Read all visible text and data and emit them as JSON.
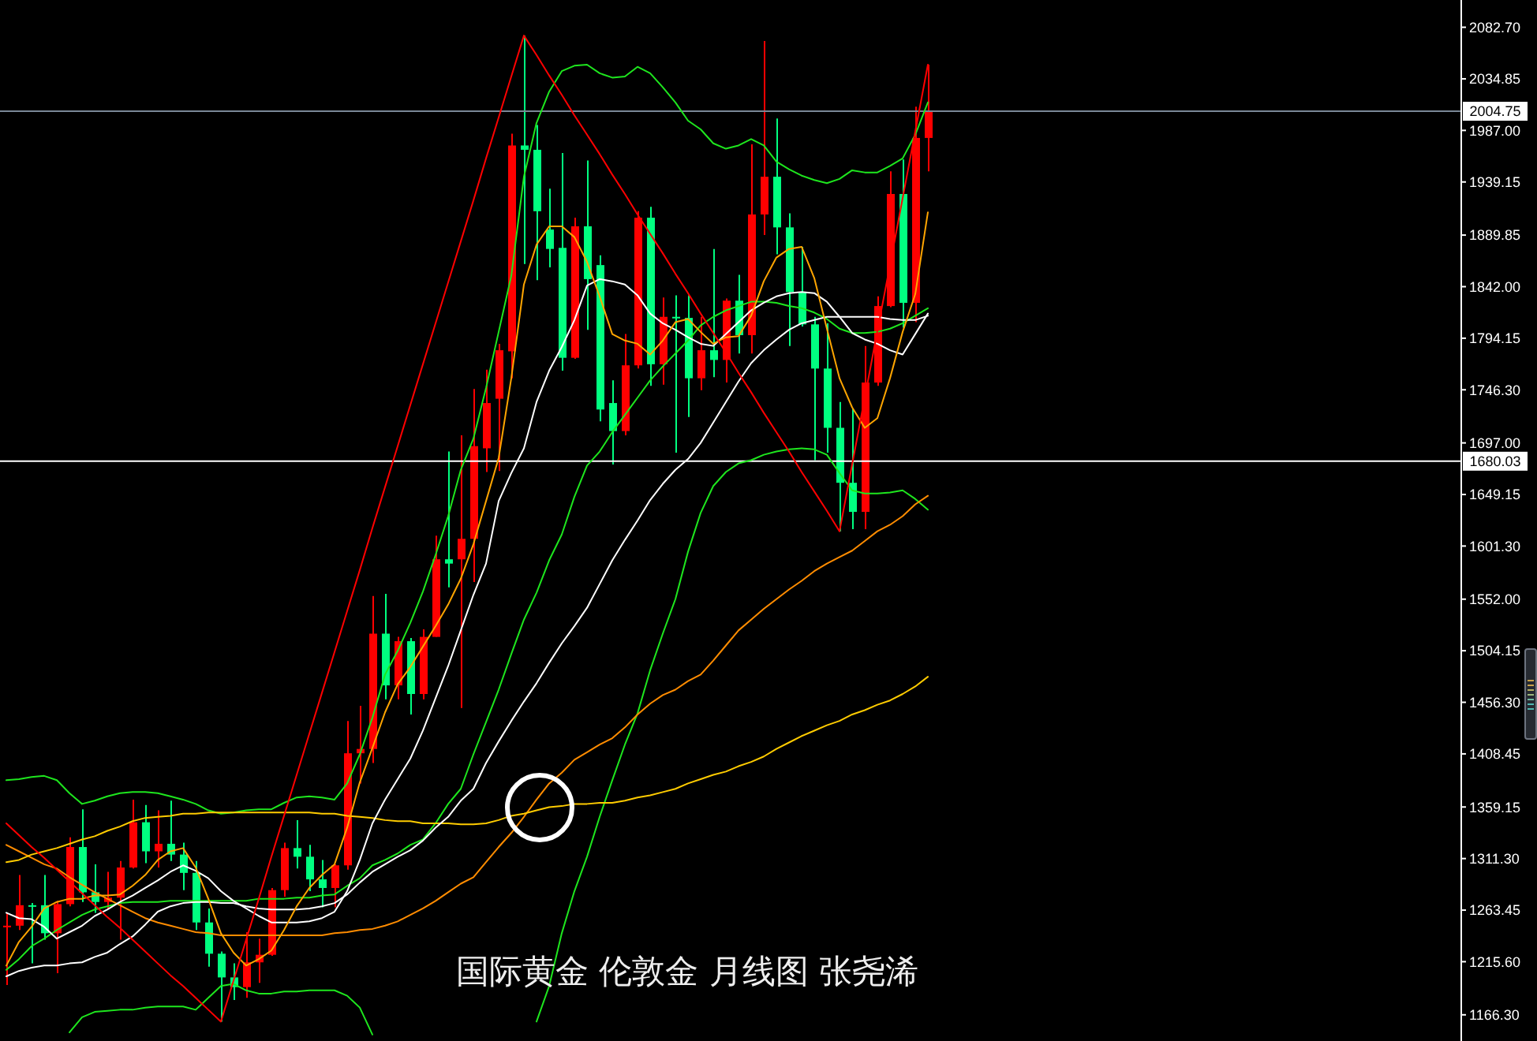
{
  "chart_data": {
    "type": "candlestick",
    "categories": [
      null,
      null,
      null,
      null,
      null,
      null,
      null,
      null,
      null,
      null,
      null,
      null,
      null,
      null,
      null,
      null,
      null,
      null,
      null,
      null,
      null,
      null,
      null,
      null,
      null,
      null,
      null,
      null,
      null,
      null,
      null,
      null,
      null,
      null,
      null,
      null,
      null,
      null,
      null,
      null,
      null,
      null,
      null,
      null,
      null,
      null,
      null,
      null,
      null,
      null,
      null,
      null,
      null,
      null,
      null,
      null,
      null,
      null,
      null,
      null,
      null,
      null,
      null,
      null,
      null,
      null,
      null,
      null,
      null,
      null,
      null,
      null,
      null,
      null
    ],
    "ohlc": [
      [
        1248,
        1261,
        1194,
        1249
      ],
      [
        1249,
        1296,
        1245,
        1268
      ],
      [
        1268,
        1270,
        1214,
        1268
      ],
      [
        1268,
        1296,
        1236,
        1242
      ],
      [
        1242,
        1272,
        1205,
        1269
      ],
      [
        1269,
        1331,
        1267,
        1322
      ],
      [
        1322,
        1357,
        1271,
        1280
      ],
      [
        1280,
        1306,
        1261,
        1271
      ],
      [
        1271,
        1299,
        1265,
        1275
      ],
      [
        1275,
        1309,
        1236,
        1303
      ],
      [
        1303,
        1366,
        1302,
        1345
      ],
      [
        1345,
        1361,
        1307,
        1318
      ],
      [
        1318,
        1356,
        1303,
        1325
      ],
      [
        1325,
        1365,
        1309,
        1315
      ],
      [
        1315,
        1326,
        1282,
        1298
      ],
      [
        1298,
        1309,
        1245,
        1252
      ],
      [
        1252,
        1265,
        1211,
        1223
      ],
      [
        1223,
        1225,
        1160,
        1201
      ],
      [
        1201,
        1214,
        1180,
        1192
      ],
      [
        1192,
        1243,
        1182,
        1215
      ],
      [
        1215,
        1237,
        1196,
        1222
      ],
      [
        1222,
        1284,
        1221,
        1282
      ],
      [
        1282,
        1326,
        1276,
        1321
      ],
      [
        1321,
        1347,
        1302,
        1313
      ],
      [
        1313,
        1324,
        1281,
        1292
      ],
      [
        1292,
        1310,
        1266,
        1284
      ],
      [
        1284,
        1306,
        1266,
        1305
      ],
      [
        1305,
        1439,
        1301,
        1409
      ],
      [
        1409,
        1453,
        1381,
        1413
      ],
      [
        1413,
        1555,
        1400,
        1520
      ],
      [
        1520,
        1557,
        1459,
        1472
      ],
      [
        1472,
        1517,
        1459,
        1513
      ],
      [
        1513,
        1516,
        1445,
        1464
      ],
      [
        1464,
        1524,
        1459,
        1517
      ],
      [
        1517,
        1611,
        1517,
        1589
      ],
      [
        1589,
        1689,
        1563,
        1585
      ],
      [
        1589,
        1704,
        1451,
        1608
      ],
      [
        1608,
        1747,
        1568,
        1694
      ],
      [
        1692,
        1765,
        1670,
        1734
      ],
      [
        1738,
        1789,
        1671,
        1783
      ],
      [
        1782,
        1984,
        1757,
        1973
      ],
      [
        1973,
        2075,
        1863,
        1969
      ],
      [
        1969,
        1992,
        1848,
        1912
      ],
      [
        1895,
        1933,
        1860,
        1877
      ],
      [
        1878,
        1966,
        1764,
        1776
      ],
      [
        1776,
        1906,
        1775,
        1898
      ],
      [
        1898,
        1959,
        1802,
        1849
      ],
      [
        1862,
        1871,
        1717,
        1728
      ],
      [
        1734,
        1755,
        1677,
        1708
      ],
      [
        1708,
        1798,
        1704,
        1769
      ],
      [
        1769,
        1912,
        1766,
        1906
      ],
      [
        1906,
        1916,
        1750,
        1770
      ],
      [
        1770,
        1832,
        1751,
        1814
      ],
      [
        1814,
        1834,
        1688,
        1813
      ],
      [
        1813,
        1834,
        1721,
        1757
      ],
      [
        1757,
        1814,
        1746,
        1783
      ],
      [
        1783,
        1877,
        1758,
        1774
      ],
      [
        1774,
        1831,
        1753,
        1829
      ],
      [
        1829,
        1853,
        1780,
        1797
      ],
      [
        1797,
        1974,
        1780,
        1909
      ],
      [
        1909,
        2070,
        1890,
        1944
      ],
      [
        1944,
        1998,
        1872,
        1897
      ],
      [
        1897,
        1910,
        1787,
        1837
      ],
      [
        1837,
        1879,
        1805,
        1807
      ],
      [
        1807,
        1814,
        1681,
        1766
      ],
      [
        1766,
        1808,
        1688,
        1711
      ],
      [
        1711,
        1735,
        1615,
        1660
      ],
      [
        1660,
        1729,
        1617,
        1633
      ],
      [
        1633,
        1787,
        1617,
        1753
      ],
      [
        1753,
        1833,
        1750,
        1824
      ],
      [
        1824,
        1949,
        1823,
        1928
      ],
      [
        1928,
        1960,
        1804,
        1827
      ],
      [
        1827,
        2009,
        1809,
        1980
      ],
      [
        1980,
        2048,
        1949,
        2005
      ]
    ],
    "colors": [
      "#ff0000",
      "#ff0000",
      "#00ff80",
      "#00ff80",
      "#ff0000",
      "#ff0000",
      "#00ff80",
      "#00ff80",
      "#ff0000",
      "#ff0000",
      "#ff0000",
      "#00ff80",
      "#ff0000",
      "#00ff80",
      "#00ff80",
      "#00ff80",
      "#00ff80",
      "#00ff80",
      "#00ff80",
      "#ff0000",
      "#ff0000",
      "#ff0000",
      "#ff0000",
      "#00ff80",
      "#00ff80",
      "#00ff80",
      "#ff0000",
      "#ff0000",
      "#ff0000",
      "#ff0000",
      "#00ff80",
      "#ff0000",
      "#00ff80",
      "#ff0000",
      "#ff0000",
      "#00ff80",
      "#ff0000",
      "#ff0000",
      "#ff0000",
      "#ff0000",
      "#ff0000",
      "#00ff80",
      "#00ff80",
      "#00ff80",
      "#00ff80",
      "#ff0000",
      "#00ff80",
      "#00ff80",
      "#00ff80",
      "#ff0000",
      "#ff0000",
      "#00ff80",
      "#ff0000",
      "#00ff80",
      "#00ff80",
      "#ff0000",
      "#00ff80",
      "#ff0000",
      "#00ff80",
      "#ff0000",
      "#ff0000",
      "#00ff80",
      "#00ff80",
      "#00ff80",
      "#00ff80",
      "#00ff80",
      "#00ff80",
      "#00ff80",
      "#ff0000",
      "#ff0000",
      "#ff0000",
      "#00ff80",
      "#ff0000",
      "#ff0000"
    ],
    "series": [
      {
        "type": "line",
        "color": "#1ee61e",
        "values": [
          1384,
          1385,
          1387,
          1388,
          1384,
          1372,
          1362,
          1365,
          1369,
          1372,
          1373,
          1373,
          1372,
          1369,
          1366,
          1362,
          1356,
          1353,
          1354,
          1356,
          1357,
          1357,
          1363,
          1368,
          1369,
          1368,
          1366,
          1381,
          1408,
          1442,
          1482,
          1504,
          1530,
          1559,
          1593,
          1629,
          1672,
          1701,
          1748,
          1800,
          1852,
          1944,
          1994,
          2023,
          2042,
          2047,
          2048,
          2040,
          2036,
          2037,
          2046,
          2040,
          2027,
          2013,
          1996,
          1988,
          1975,
          1970,
          1973,
          1979,
          1973,
          1958,
          1951,
          1945,
          1941,
          1938,
          1942,
          1950,
          1948,
          1948,
          1954,
          1961,
          1983,
          2013
        ]
      },
      {
        "type": "line",
        "color": "#1ee61e",
        "values": [
          1208,
          1218,
          1230,
          1237,
          1245,
          1252,
          1259,
          1264,
          1267,
          1270,
          1271,
          1271,
          1271,
          1272,
          1272,
          1272,
          1272,
          1272,
          1272,
          1272,
          1274,
          1274,
          1274,
          1275,
          1275,
          1277,
          1278,
          1286,
          1293,
          1305,
          1310,
          1316,
          1324,
          1329,
          1344,
          1362,
          1376,
          1408,
          1438,
          1468,
          1501,
          1533,
          1558,
          1588,
          1612,
          1647,
          1676,
          1689,
          1707,
          1723,
          1739,
          1755,
          1768,
          1780,
          1792,
          1806,
          1814,
          1820,
          1824,
          1828,
          1828,
          1827,
          1824,
          1822,
          1818,
          1812,
          1803,
          1799,
          1799,
          1800,
          1803,
          1808,
          1815,
          1822
        ]
      },
      {
        "type": "line",
        "color": "#1ee61e",
        "values": [
          null,
          null,
          null,
          null,
          null,
          1150,
          1164,
          1169,
          1170,
          1171,
          1171,
          1173,
          1174,
          1174,
          1174,
          1171,
          1182,
          1193,
          1195,
          1189,
          1186,
          1186,
          1188,
          1188,
          1189,
          1189,
          1189,
          1184,
          1173,
          1148,
          null,
          null,
          null,
          null,
          null,
          null,
          null,
          null,
          null,
          null,
          null,
          null,
          1160,
          1193,
          1242,
          1281,
          1313,
          1350,
          1384,
          1417,
          1446,
          1486,
          1520,
          1552,
          1596,
          1632,
          1657,
          1670,
          1678,
          1681,
          1686,
          1689,
          1691,
          1692,
          1691,
          1686,
          1669,
          1653,
          1650,
          1650,
          1651,
          1653,
          1645,
          1635
        ]
      },
      {
        "type": "line",
        "color": "#ff8c00",
        "values": [
          1324,
          1318,
          1312,
          1306,
          1302,
          1294,
          1287,
          1280,
          1274,
          1268,
          1262,
          1256,
          1252,
          1249,
          1246,
          1243,
          1242,
          1240,
          1240,
          1240,
          1240,
          1240,
          1240,
          1240,
          1240,
          1240,
          1242,
          1243,
          1245,
          1246,
          1249,
          1253,
          1259,
          1265,
          1272,
          1280,
          1288,
          1294,
          1308,
          1322,
          1335,
          1350,
          1366,
          1381,
          1391,
          1403,
          1410,
          1417,
          1423,
          1433,
          1445,
          1455,
          1463,
          1468,
          1476,
          1482,
          1495,
          1509,
          1523,
          1533,
          1543,
          1552,
          1561,
          1569,
          1578,
          1585,
          1591,
          1597,
          1606,
          1615,
          1621,
          1629,
          1640,
          1648
        ]
      },
      {
        "type": "line",
        "color": "#ffcc00",
        "values": [
          1308,
          1310,
          1315,
          1318,
          1321,
          1325,
          1329,
          1332,
          1337,
          1341,
          1346,
          1349,
          1350,
          1351,
          1353,
          1353,
          1354,
          1354,
          1354,
          1354,
          1354,
          1354,
          1354,
          1354,
          1354,
          1353,
          1353,
          1351,
          1350,
          1349,
          1347,
          1346,
          1346,
          1344,
          1344,
          1344,
          1343,
          1343,
          1344,
          1347,
          1351,
          1353,
          1356,
          1359,
          1360,
          1362,
          1362,
          1363,
          1363,
          1365,
          1368,
          1370,
          1373,
          1376,
          1381,
          1385,
          1389,
          1392,
          1397,
          1401,
          1406,
          1413,
          1419,
          1425,
          1430,
          1435,
          1439,
          1445,
          1449,
          1454,
          1458,
          1464,
          1471,
          1480
        ]
      },
      {
        "type": "line",
        "color": "#ffffff",
        "values": [
          1202,
          1207,
          1210,
          1212,
          1212,
          1214,
          1215,
          1220,
          1224,
          1232,
          1239,
          1250,
          1262,
          1267,
          1270,
          1271,
          1271,
          1270,
          1270,
          1267,
          1265,
          1264,
          1264,
          1264,
          1265,
          1267,
          1270,
          1278,
          1289,
          1299,
          1306,
          1313,
          1319,
          1328,
          1340,
          1350,
          1365,
          1376,
          1400,
          1420,
          1439,
          1457,
          1474,
          1493,
          1511,
          1527,
          1544,
          1566,
          1588,
          1607,
          1625,
          1644,
          1659,
          1672,
          1682,
          1697,
          1716,
          1735,
          1754,
          1771,
          1783,
          1793,
          1802,
          1808,
          1811,
          1814,
          1814,
          1814,
          1814,
          1814,
          1812,
          1811,
          1811,
          1815
        ]
      },
      {
        "type": "line",
        "color": "#ffffff",
        "values": [
          1261,
          1256,
          1255,
          1248,
          1237,
          1243,
          1249,
          1258,
          1264,
          1271,
          1277,
          1284,
          1291,
          1299,
          1305,
          1300,
          1293,
          1281,
          1272,
          1265,
          1258,
          1252,
          1252,
          1252,
          1253,
          1256,
          1262,
          1281,
          1310,
          1344,
          1366,
          1385,
          1404,
          1430,
          1460,
          1490,
          1523,
          1556,
          1585,
          1643,
          1669,
          1692,
          1735,
          1764,
          1786,
          1811,
          1843,
          1849,
          1847,
          1844,
          1834,
          1817,
          1808,
          1802,
          1795,
          1789,
          1787,
          1798,
          1809,
          1820,
          1827,
          1833,
          1836,
          1837,
          1836,
          1828,
          1814,
          1799,
          1793,
          1789,
          1783,
          1779,
          1798,
          1817
        ]
      },
      {
        "type": "line",
        "color": "#ffa500",
        "values": [
          1212,
          1234,
          1248,
          1265,
          1271,
          1274,
          1274,
          1277,
          1277,
          1278,
          1286,
          1296,
          1310,
          1318,
          1321,
          1303,
          1274,
          1242,
          1224,
          1212,
          1218,
          1226,
          1245,
          1267,
          1284,
          1296,
          1306,
          1340,
          1382,
          1414,
          1447,
          1473,
          1489,
          1508,
          1527,
          1547,
          1571,
          1603,
          1643,
          1683,
          1757,
          1844,
          1881,
          1898,
          1898,
          1888,
          1865,
          1833,
          1798,
          1792,
          1789,
          1779,
          1792,
          1809,
          1812,
          1800,
          1789,
          1795,
          1796,
          1815,
          1847,
          1869,
          1877,
          1879,
          1850,
          1803,
          1757,
          1730,
          1711,
          1720,
          1757,
          1800,
          1835,
          1911
        ]
      },
      {
        "type": "line",
        "color": "#ff0000",
        "values": [
          1344,
          1333,
          1322,
          1312,
          1301,
          1290,
          1279,
          1268,
          1257,
          1247,
          1236,
          1225,
          1214,
          1203,
          1193,
          1182,
          1171,
          1160,
          1198,
          1236,
          1274,
          1313,
          1351,
          1389,
          1427,
          1465,
          1503,
          1541,
          1579,
          1618,
          1656,
          1694,
          1732,
          1770,
          1808,
          1846,
          1884,
          1922,
          1961,
          1999,
          2037,
          2075,
          2057,
          2038,
          2020,
          2001,
          1983,
          1965,
          1946,
          1928,
          1909,
          1891,
          1873,
          1854,
          1836,
          1817,
          1799,
          1781,
          1762,
          1744,
          1725,
          1707,
          1689,
          1670,
          1652,
          1634,
          1615,
          1677,
          1739,
          1801,
          1862,
          1924,
          1986,
          2048
        ]
      }
    ],
    "ylim": [
      1142,
      2108
    ],
    "yticks": [
      {
        "value": 2082.7,
        "label": "2082.70"
      },
      2034.85,
      {
        "value": 1987,
        "label": "1987.00"
      },
      1939.15,
      1889.85,
      {
        "value": 1842,
        "label": "1842.00"
      },
      1794.15,
      {
        "value": 1746.3,
        "label": "1746.30"
      },
      {
        "value": 1697,
        "label": "1697.00"
      },
      1649.15,
      {
        "value": 1601.3,
        "label": "1601.30"
      },
      {
        "value": 1552,
        "label": "1552.00"
      },
      1504.15,
      {
        "value": 1456.3,
        "label": "1456.30"
      },
      1408.45,
      1359.15,
      {
        "value": 1311.3,
        "label": "1311.30"
      },
      1263.45,
      {
        "value": 1215.6,
        "label": "1215.60"
      },
      {
        "value": 1166.3,
        "label": "1166.30"
      }
    ],
    "tick_labels": "y",
    "ref_lines": [
      {
        "axis": "y",
        "value": 2004.75,
        "label": "2004.75",
        "color": "#7a8796"
      },
      {
        "axis": "y",
        "value": 1680.03,
        "label": "1680.03",
        "color": "#ffffff"
      }
    ],
    "annotations": [
      "国际黄金 伦敦金 月线图 张尧浠"
    ]
  }
}
